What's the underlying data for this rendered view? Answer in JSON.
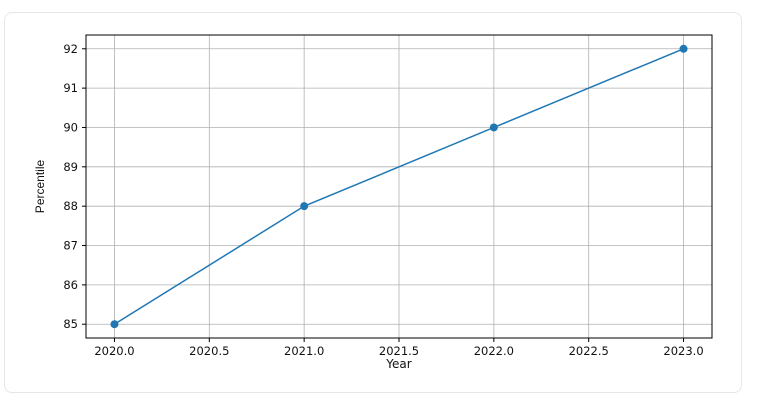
{
  "chart_data": {
    "type": "line",
    "title": "",
    "xlabel": "Year",
    "ylabel": "Percentile",
    "x": [
      2020,
      2021,
      2022,
      2023
    ],
    "series": [
      {
        "values": [
          85,
          88,
          90,
          92
        ],
        "color": "#1f77b4",
        "marker": "circle"
      }
    ],
    "xlim": [
      2019.85,
      2023.15
    ],
    "ylim": [
      84.65,
      92.35
    ],
    "xticks": [
      2020.0,
      2020.5,
      2021.0,
      2021.5,
      2022.0,
      2022.5,
      2023.0
    ],
    "xtick_labels": [
      "2020.0",
      "2020.5",
      "2021.0",
      "2021.5",
      "2022.0",
      "2022.5",
      "2023.0"
    ],
    "yticks": [
      85,
      86,
      87,
      88,
      89,
      90,
      91,
      92
    ],
    "ytick_labels": [
      "85",
      "86",
      "87",
      "88",
      "89",
      "90",
      "91",
      "92"
    ],
    "grid": true,
    "legend": "none"
  }
}
